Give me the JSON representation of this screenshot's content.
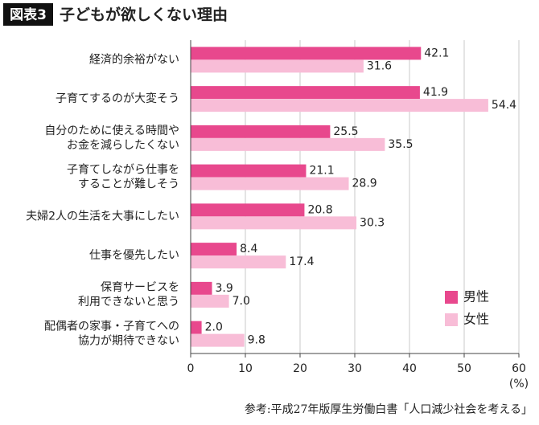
{
  "chart_data": {
    "type": "hbar",
    "badge": "図表3",
    "title": "子どもが欲しくない理由",
    "categories": [
      "経済的余裕がない",
      "子育てするのが大変そう",
      "自分のために使える時間や\nお金を減らしたくない",
      "子育てしながら仕事を\nすることが難しそう",
      "夫婦2人の生活を大事にしたい",
      "仕事を優先したい",
      "保育サービスを\n利用できないと思う",
      "配偶者の家事・子育てへの\n協力が期待できない"
    ],
    "series": [
      {
        "name": "男性",
        "color": "#e8488d",
        "values": [
          42.1,
          41.9,
          25.5,
          21.1,
          20.8,
          8.4,
          3.9,
          2.0
        ],
        "value_labels": [
          "42.1",
          "41.9",
          "25.5",
          "21.1",
          "20.8",
          "8.4",
          "3.9",
          "2.0"
        ]
      },
      {
        "name": "女性",
        "color": "#f8bdd7",
        "values": [
          31.6,
          54.4,
          35.5,
          28.9,
          30.3,
          17.4,
          7.0,
          9.8
        ],
        "value_labels": [
          "31.6",
          "54.4",
          "35.5",
          "28.9",
          "30.3",
          "17.4",
          "7.0",
          "9.8"
        ]
      }
    ],
    "xlim": [
      0,
      60
    ],
    "xticks": [
      0,
      10,
      20,
      30,
      40,
      50,
      60
    ],
    "x_unit": "(%)",
    "grid": true,
    "legend": "lower right",
    "source": "参考:平成27年版厚生労働白書「人口減少社会を考える」"
  }
}
